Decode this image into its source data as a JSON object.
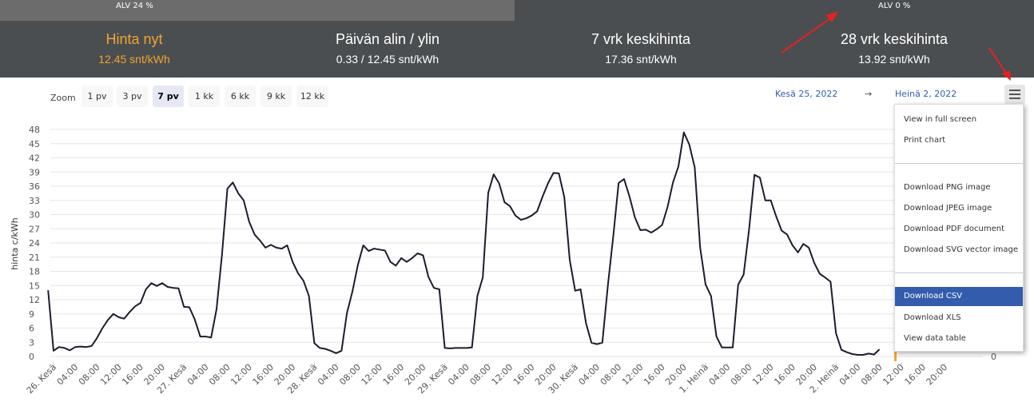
{
  "vat_tabs": {
    "vat24": "ALV 24 %",
    "vat0": "ALV 0 %"
  },
  "stats": [
    {
      "title": "Hinta nyt",
      "value": "12.45 snt/kWh",
      "accent": true
    },
    {
      "title": "Päivän alin / ylin",
      "value": "0.33 / 12.45 snt/kWh"
    },
    {
      "title": "7 vrk keskihinta",
      "value": "17.36 snt/kWh"
    },
    {
      "title": "28 vrk keskihinta",
      "value": "13.92 snt/kWh"
    }
  ],
  "zoom": {
    "label": "Zoom",
    "buttons": [
      "1 pv",
      "3 pv",
      "7 pv",
      "1 kk",
      "6 kk",
      "9 kk",
      "12 kk"
    ],
    "selected": "7 pv"
  },
  "range": {
    "from": "Kesä 25, 2022",
    "arrow": "→",
    "to": "Heinä 2, 2022"
  },
  "menu": {
    "items": [
      "View in full screen",
      "Print chart",
      "Download PNG image",
      "Download JPEG image",
      "Download PDF document",
      "Download SVG vector image",
      "Download CSV",
      "Download XLS",
      "View data table"
    ],
    "active": "Download CSV"
  },
  "colors": {
    "line": "#1c1c2e",
    "accent": "#f0a431",
    "menu_active": "#335cad",
    "header": "#4a4e51"
  },
  "chart_data": {
    "type": "line",
    "ylabel": "hinta c/kWh",
    "ylim": [
      0,
      48
    ],
    "y_ticks": [
      0,
      3,
      6,
      9,
      12,
      15,
      18,
      21,
      24,
      27,
      30,
      33,
      36,
      39,
      42,
      45,
      48
    ],
    "right_axis_visible_tick": "0",
    "x_tick_labels": [
      "26. Kesä",
      "04:00",
      "08:00",
      "12:00",
      "16:00",
      "20:00",
      "27. Kesä",
      "04:00",
      "08:00",
      "12:00",
      "16:00",
      "20:00",
      "28. Kesä",
      "04:00",
      "08:00",
      "12:00",
      "16:00",
      "20:00",
      "29. Kesä",
      "04:00",
      "08:00",
      "12:00",
      "16:00",
      "20:00",
      "30. Kesä",
      "04:00",
      "08:00",
      "12:00",
      "16:00",
      "20:00",
      "1. Heinä",
      "04:00",
      "08:00",
      "12:00",
      "16:00",
      "20:00",
      "2. Heinä",
      "04:00",
      "08:00",
      "12:00",
      "16:00",
      "20:00"
    ],
    "x_start_hour": -1,
    "x_end_hour": 167,
    "series": [
      {
        "points": [
          [
            -1,
            14
          ],
          [
            0,
            1.2
          ],
          [
            1,
            2
          ],
          [
            2,
            1.8
          ],
          [
            3,
            1.3
          ],
          [
            4,
            2
          ],
          [
            5,
            2.1
          ],
          [
            6,
            2
          ],
          [
            7,
            2.2
          ],
          [
            8,
            3.9
          ],
          [
            9,
            6
          ],
          [
            10,
            7.7
          ],
          [
            11,
            9
          ],
          [
            12,
            8.3
          ],
          [
            13,
            8
          ],
          [
            14,
            9.4
          ],
          [
            15,
            10.6
          ],
          [
            16,
            11.3
          ],
          [
            17,
            14.2
          ],
          [
            18,
            15.5
          ],
          [
            19,
            14.9
          ],
          [
            20,
            15.5
          ],
          [
            21,
            14.7
          ],
          [
            22,
            14.5
          ],
          [
            23,
            14.4
          ],
          [
            24,
            10.5
          ],
          [
            25,
            10.4
          ],
          [
            26,
            7.8
          ],
          [
            27,
            4.2
          ],
          [
            28,
            4.2
          ],
          [
            29,
            4
          ],
          [
            30,
            10
          ],
          [
            31,
            21.5
          ],
          [
            32,
            35.5
          ],
          [
            33,
            36.8
          ],
          [
            34,
            34.5
          ],
          [
            35,
            33
          ],
          [
            36,
            28.5
          ],
          [
            37,
            25.8
          ],
          [
            38,
            24.5
          ],
          [
            39,
            23
          ],
          [
            40,
            23.6
          ],
          [
            41,
            23
          ],
          [
            42,
            22.8
          ],
          [
            43,
            23.5
          ],
          [
            44,
            20
          ],
          [
            45,
            17.6
          ],
          [
            46,
            16
          ],
          [
            47,
            12.8
          ],
          [
            48,
            2.8
          ],
          [
            49,
            1.8
          ],
          [
            50,
            1.6
          ],
          [
            51,
            1.2
          ],
          [
            52,
            0.7
          ],
          [
            53,
            1.2
          ],
          [
            54,
            9.2
          ],
          [
            55,
            13.7
          ],
          [
            56,
            19.3
          ],
          [
            57,
            23.5
          ],
          [
            58,
            22.3
          ],
          [
            59,
            22.8
          ],
          [
            60,
            22.6
          ],
          [
            61,
            22.4
          ],
          [
            62,
            20
          ],
          [
            63,
            19.2
          ],
          [
            64,
            20.8
          ],
          [
            65,
            20
          ],
          [
            66,
            20.8
          ],
          [
            67,
            21.8
          ],
          [
            68,
            21.4
          ],
          [
            69,
            16.8
          ],
          [
            70,
            14.5
          ],
          [
            71,
            14.2
          ],
          [
            72,
            1.8
          ],
          [
            73,
            1.7
          ],
          [
            74,
            1.8
          ],
          [
            75,
            1.8
          ],
          [
            76,
            1.8
          ],
          [
            77,
            1.9
          ],
          [
            78,
            12.8
          ],
          [
            79,
            16.7
          ],
          [
            80,
            34.6
          ],
          [
            81,
            38.5
          ],
          [
            82,
            36.6
          ],
          [
            83,
            32.6
          ],
          [
            84,
            31.8
          ],
          [
            85,
            29.8
          ],
          [
            86,
            28.9
          ],
          [
            87,
            29.2
          ],
          [
            88,
            29.8
          ],
          [
            89,
            30.7
          ],
          [
            90,
            33.8
          ],
          [
            91,
            36.6
          ],
          [
            92,
            38.8
          ],
          [
            93,
            38.7
          ],
          [
            94,
            33.7
          ],
          [
            95,
            20.4
          ],
          [
            96,
            13.9
          ],
          [
            97,
            14.2
          ],
          [
            98,
            7
          ],
          [
            99,
            2.9
          ],
          [
            100,
            2.6
          ],
          [
            101,
            2.9
          ],
          [
            102,
            14.8
          ],
          [
            103,
            25.3
          ],
          [
            104,
            36.7
          ],
          [
            105,
            37.5
          ],
          [
            106,
            33.8
          ],
          [
            107,
            29.4
          ],
          [
            108,
            26.7
          ],
          [
            109,
            26.8
          ],
          [
            110,
            26.2
          ],
          [
            111,
            26.9
          ],
          [
            112,
            27.8
          ],
          [
            113,
            31.6
          ],
          [
            114,
            36.8
          ],
          [
            115,
            40.2
          ],
          [
            116,
            47.4
          ],
          [
            117,
            44.8
          ],
          [
            118,
            40
          ],
          [
            119,
            23
          ],
          [
            120,
            15.2
          ],
          [
            121,
            12.8
          ],
          [
            122,
            4.2
          ],
          [
            123,
            1.9
          ],
          [
            124,
            1.9
          ],
          [
            125,
            1.9
          ],
          [
            126,
            15.2
          ],
          [
            127,
            17.3
          ],
          [
            128,
            26.8
          ],
          [
            129,
            38.4
          ],
          [
            130,
            37.8
          ],
          [
            131,
            33
          ],
          [
            132,
            33
          ],
          [
            133,
            29.6
          ],
          [
            134,
            26.6
          ],
          [
            135,
            25.8
          ],
          [
            136,
            23.5
          ],
          [
            137,
            22
          ],
          [
            138,
            23.8
          ],
          [
            139,
            23
          ],
          [
            140,
            19.8
          ],
          [
            141,
            17.5
          ],
          [
            142,
            16.7
          ],
          [
            143,
            15.8
          ],
          [
            144,
            4.9
          ],
          [
            145,
            1.4
          ],
          [
            146,
            0.9
          ],
          [
            147,
            0.5
          ],
          [
            148,
            0.33
          ],
          [
            149,
            0.33
          ],
          [
            150,
            0.6
          ],
          [
            151,
            0.4
          ],
          [
            152,
            1.5
          ]
        ]
      }
    ]
  }
}
